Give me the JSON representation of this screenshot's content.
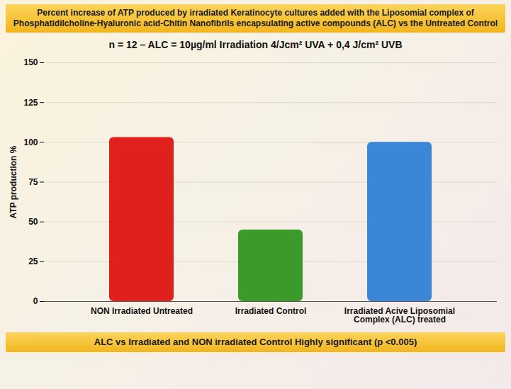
{
  "chart_data": {
    "type": "bar",
    "title": "Percent increase of ATP produced by irradiated Keratinocyte  cultures added with the Liposomial complex of Phosphatidilcholine-Hyaluronic acid-Chitin Nanofibrils encapsulating active compounds (ALC) vs the Untreated Control",
    "subtitle": "n = 12 – ALC = 10µg/ml Irradiation 4/Jcm² UVA + 0,4 J/cm² UVB",
    "caption": "ALC vs Irradiated and NON irradiated Control Highly significant (p <0.005)",
    "y_label": "ATP production %",
    "categories": [
      "NON Irradiated Untreated",
      "Irradiated Control",
      "Irradiated Acive Liposomial Complex (ALC) treated"
    ],
    "values": [
      103,
      45,
      100
    ],
    "colors": [
      "#e0201c",
      "#3a9a2a",
      "#3b86d6"
    ],
    "ylim": [
      0,
      150
    ],
    "yticks": [
      0,
      25,
      50,
      75,
      100,
      125,
      150
    ],
    "grid": true
  }
}
